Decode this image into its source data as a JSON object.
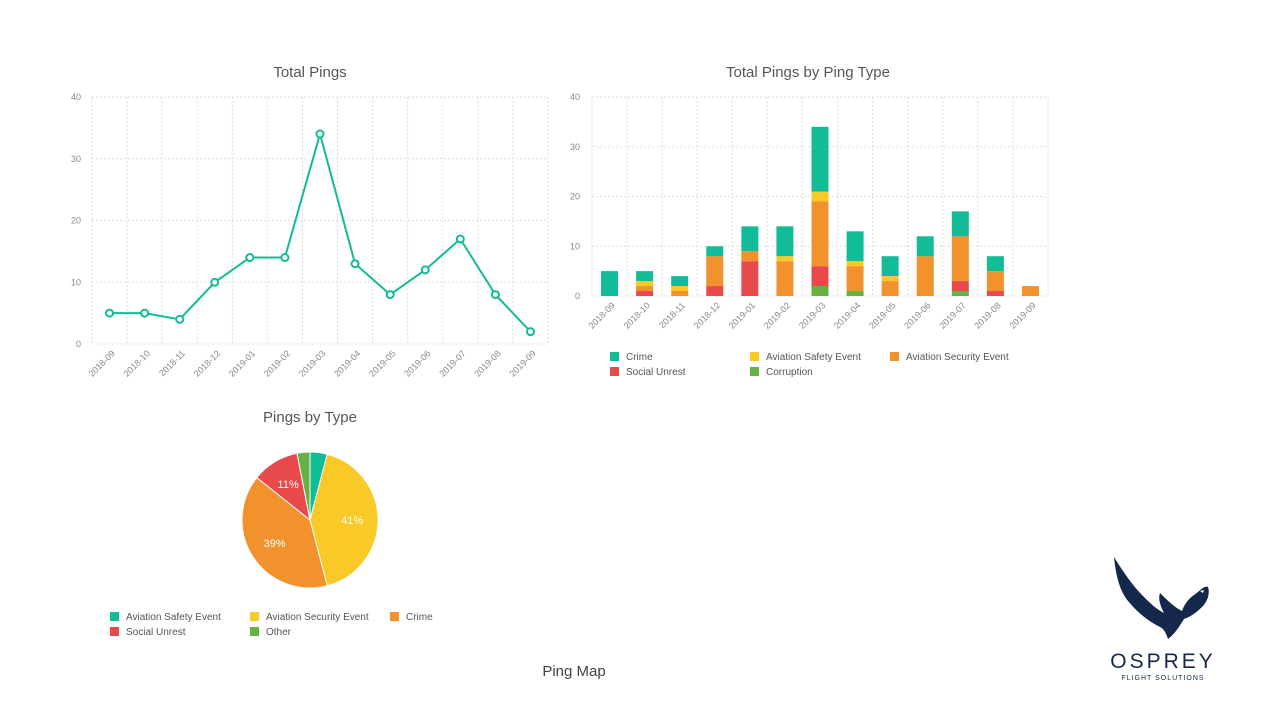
{
  "colors": {
    "teal": "#12bc96",
    "yellow": "#f9c928",
    "orange": "#f1922d",
    "red": "#e84a4c",
    "green": "#67b044",
    "grid": "#dddddd",
    "axis_text": "#888888",
    "logo_navy": "#14284b"
  },
  "chart_data": [
    {
      "type": "line",
      "title": "Total Pings",
      "categories": [
        "2018-09",
        "2018-10",
        "2018-11",
        "2018-12",
        "2019-01",
        "2019-02",
        "2019-03",
        "2019-04",
        "2019-05",
        "2019-06",
        "2019-07",
        "2019-08",
        "2019-09"
      ],
      "values": [
        5,
        5,
        4,
        10,
        14,
        14,
        34,
        13,
        8,
        12,
        17,
        8,
        2
      ],
      "ylim": [
        0,
        40
      ],
      "yticks": [
        0,
        10,
        20,
        30,
        40
      ],
      "grid": true,
      "color": "#12bc96"
    },
    {
      "type": "bar",
      "stacked": true,
      "title": "Total Pings by Ping Type",
      "categories": [
        "2018-09",
        "2018-10",
        "2018-11",
        "2018-12",
        "2019-01",
        "2019-02",
        "2019-03",
        "2019-04",
        "2019-05",
        "2019-06",
        "2019-07",
        "2019-08",
        "2019-09"
      ],
      "ylim": [
        0,
        40
      ],
      "yticks": [
        0,
        10,
        20,
        30,
        40
      ],
      "grid": true,
      "legend_position": "bottom",
      "series": [
        {
          "name": "Corruption",
          "color": "#67b044",
          "values": [
            0,
            0,
            0,
            0,
            0,
            0,
            2,
            1,
            0,
            0,
            1,
            0,
            0
          ]
        },
        {
          "name": "Social Unrest",
          "color": "#e84a4c",
          "values": [
            0,
            1,
            0,
            2,
            7,
            0,
            4,
            0,
            0,
            0,
            2,
            1,
            0
          ]
        },
        {
          "name": "Aviation Security Event",
          "color": "#f1922d",
          "values": [
            0,
            1,
            1,
            6,
            2,
            7,
            13,
            5,
            3,
            8,
            9,
            4,
            2
          ]
        },
        {
          "name": "Aviation Safety Event",
          "color": "#f9c928",
          "values": [
            0,
            1,
            1,
            0,
            0,
            1,
            2,
            1,
            1,
            0,
            0,
            0,
            0
          ]
        },
        {
          "name": "Crime",
          "color": "#12bc96",
          "values": [
            5,
            2,
            2,
            2,
            5,
            6,
            13,
            6,
            4,
            4,
            5,
            3,
            0
          ]
        }
      ],
      "legend_order": [
        "Crime",
        "Aviation Safety Event",
        "Aviation Security Event",
        "Social Unrest",
        "Corruption"
      ]
    },
    {
      "type": "pie",
      "title": "Pings by Type",
      "legend_position": "bottom",
      "slices": [
        {
          "name": "Aviation Safety Event",
          "value": 4,
          "color": "#12bc96",
          "label": ""
        },
        {
          "name": "Aviation Security Event",
          "value": 41,
          "color": "#f9c928",
          "label": "41%"
        },
        {
          "name": "Crime",
          "value": 39,
          "color": "#f1922d",
          "label": "39%"
        },
        {
          "name": "Social Unrest",
          "value": 11,
          "color": "#e84a4c",
          "label": "11%"
        },
        {
          "name": "Other",
          "value": 3,
          "color": "#67b044",
          "label": ""
        }
      ]
    }
  ],
  "footer": {
    "section_title": "Ping Map"
  },
  "logo": {
    "icon": "osprey-bird-icon",
    "name": "OSPREY",
    "sub": "FLIGHT SOLUTIONS"
  }
}
